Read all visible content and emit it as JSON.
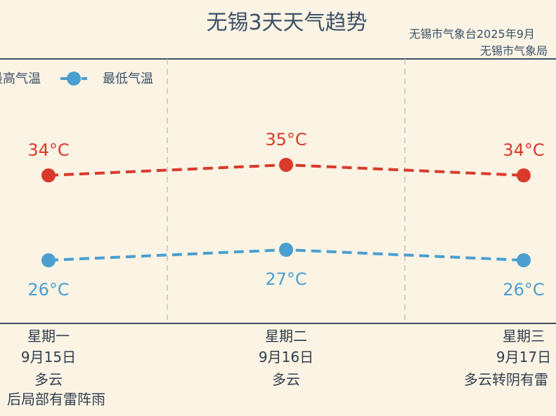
{
  "chart_data": {
    "type": "line",
    "title": "无锡3天天气趋势",
    "subtitle_line1": "无锡市气象台2025年9月",
    "subtitle_line2": "无锡市气象局",
    "categories": [
      "星期一",
      "星期二",
      "星期三"
    ],
    "dates": [
      "9月15日",
      "9月16日",
      "9月17日"
    ],
    "weather": [
      "多云",
      "多云",
      "多云转阴有雷"
    ],
    "weather_extra": [
      "后局部有雷阵雨",
      "",
      ""
    ],
    "series": [
      {
        "name": "最高气温",
        "values": [
          34,
          35,
          34
        ],
        "labels": [
          "34°C",
          "35°C",
          "34°C"
        ],
        "color": "#D93A2B"
      },
      {
        "name": "最低气温",
        "values": [
          26,
          27,
          26
        ],
        "labels": [
          "26°C",
          "27°C",
          "26°C"
        ],
        "color": "#4A9FD0"
      }
    ],
    "legend": [
      "最高气温",
      "最低气温"
    ],
    "legend_placement": "top-left",
    "ylim": [
      22,
      40
    ],
    "grid": false
  }
}
